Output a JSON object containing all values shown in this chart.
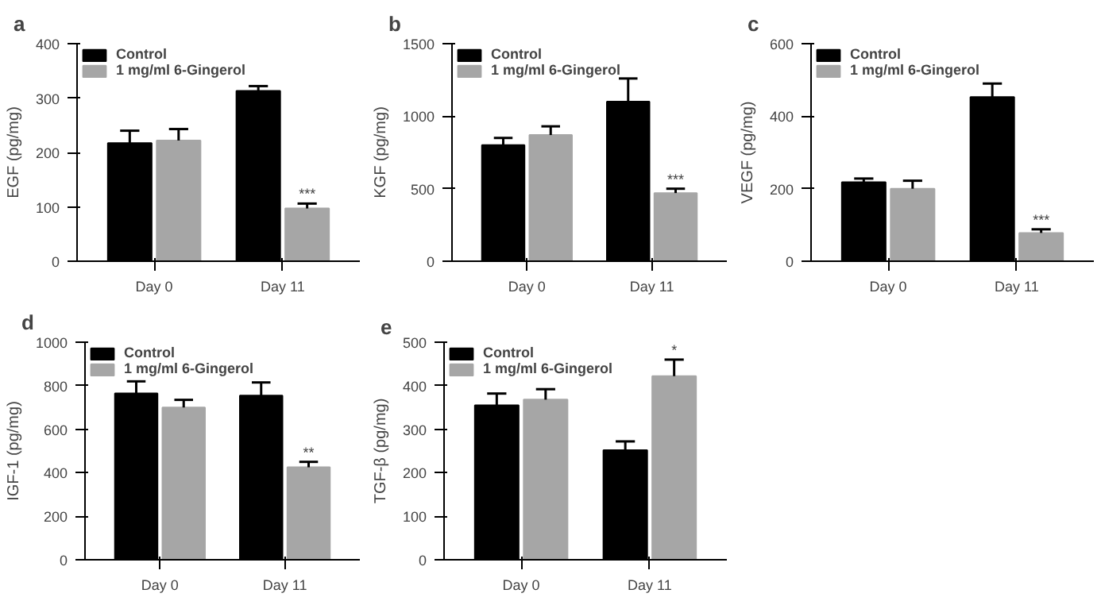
{
  "chart_data": [
    {
      "type": "bar",
      "title": "a",
      "ylabel": "EGF (pg/mg)",
      "categories": [
        "Day 0",
        "Day 11"
      ],
      "ylim": [
        0,
        400
      ],
      "yticks": [
        0,
        100,
        200,
        300,
        400
      ],
      "legend": "top left",
      "grid": false,
      "series": [
        {
          "name": "Control",
          "color": "#000000",
          "values": [
            217,
            313
          ],
          "errors": [
            [
              217,
              240
            ],
            [
              313,
              322
            ]
          ]
        },
        {
          "name": "1 mg/ml 6-Gingerol",
          "color": "#a6a6a6",
          "values": [
            222,
            97
          ],
          "errors": [
            [
              222,
              243
            ],
            [
              97,
              106
            ]
          ]
        }
      ],
      "annotations": [
        {
          "text": "***",
          "x": "Day 11",
          "y": 97
        }
      ]
    },
    {
      "type": "bar",
      "title": "b",
      "ylabel": "KGF (pg/mg)",
      "categories": [
        "Day 0",
        "Day 11"
      ],
      "ylim": [
        0,
        1500
      ],
      "yticks": [
        0,
        500,
        1000,
        1500
      ],
      "legend": "top left",
      "grid": false,
      "series": [
        {
          "name": "Control",
          "color": "#000000",
          "values": [
            800,
            1100
          ],
          "errors": [
            [
              800,
              850
            ],
            [
              1100,
              1260
            ]
          ]
        },
        {
          "name": "1 mg/ml 6-Gingerol",
          "color": "#a6a6a6",
          "values": [
            870,
            470
          ],
          "errors": [
            [
              870,
              930
            ],
            [
              470,
              500
            ]
          ]
        }
      ],
      "annotations": [
        {
          "text": "***",
          "x": "Day 11",
          "y": 470
        }
      ]
    },
    {
      "type": "bar",
      "title": "c",
      "ylabel": "VEGF (pg/mg)",
      "categories": [
        "Day 0",
        "Day 11"
      ],
      "ylim": [
        0,
        600
      ],
      "yticks": [
        0,
        200,
        400,
        600
      ],
      "legend": "top left",
      "grid": false,
      "series": [
        {
          "name": "Control",
          "color": "#000000",
          "values": [
            218,
            453
          ],
          "errors": [
            [
              218,
              228
            ],
            [
              453,
              490
            ]
          ]
        },
        {
          "name": "1 mg/ml 6-Gingerol",
          "color": "#a6a6a6",
          "values": [
            200,
            78
          ],
          "errors": [
            [
              200,
              222
            ],
            [
              78,
              88
            ]
          ]
        }
      ],
      "annotations": [
        {
          "text": "***",
          "x": "Day 11",
          "y": 78
        }
      ]
    },
    {
      "type": "bar",
      "title": "d",
      "ylabel": "IGF-1 (pg/mg)",
      "categories": [
        "Day 0",
        "Day 11"
      ],
      "ylim": [
        0,
        1000
      ],
      "yticks": [
        0,
        200,
        400,
        600,
        800,
        1000
      ],
      "legend": "top left",
      "grid": false,
      "series": [
        {
          "name": "Control",
          "color": "#000000",
          "values": [
            765,
            755
          ],
          "errors": [
            [
              765,
              820
            ],
            [
              755,
              815
            ]
          ]
        },
        {
          "name": "1 mg/ml 6-Gingerol",
          "color": "#a6a6a6",
          "values": [
            700,
            425
          ],
          "errors": [
            [
              700,
              735
            ],
            [
              425,
              450
            ]
          ]
        }
      ],
      "annotations": [
        {
          "text": "**",
          "x": "Day 11",
          "y": 425
        }
      ]
    },
    {
      "type": "bar",
      "title": "e",
      "ylabel": "TGF-β (pg/mg)",
      "categories": [
        "Day 0",
        "Day 11"
      ],
      "ylim": [
        0,
        500
      ],
      "yticks": [
        0,
        100,
        200,
        300,
        400,
        500
      ],
      "legend": "top left",
      "grid": false,
      "series": [
        {
          "name": "Control",
          "color": "#000000",
          "values": [
            355,
            252
          ],
          "errors": [
            [
              355,
              382
            ],
            [
              252,
              272
            ]
          ]
        },
        {
          "name": "1 mg/ml 6-Gingerol",
          "color": "#a6a6a6",
          "values": [
            368,
            422
          ],
          "errors": [
            [
              368,
              392
            ],
            [
              422,
              460
            ]
          ]
        }
      ],
      "annotations": [
        {
          "text": "*",
          "x": "Day 11",
          "y": 422
        }
      ]
    }
  ]
}
